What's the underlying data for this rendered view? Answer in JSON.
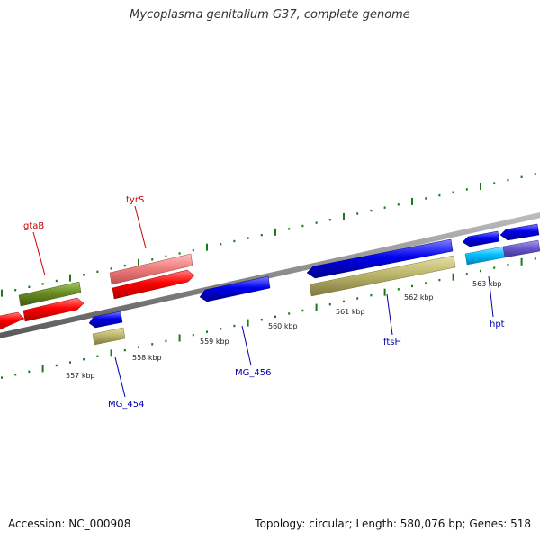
{
  "title": "Mycoplasma genitalium G37, complete genome",
  "footer": {
    "accession": "Accession: NC_000908",
    "stats": "Topology: circular; Length: 580,076 bp; Genes: 518"
  },
  "colors": {
    "backbone": "#7a7a7a",
    "ticks": "#1a7a1a",
    "gene_label_forward": "#cc0000",
    "gene_label_reverse": "#0000aa",
    "cds": "#ff0000",
    "cds_reverse": "#0000ee",
    "cds_light": "#f08080",
    "rna": "#6b8e23",
    "misc": "#bdb76b",
    "cyan": "#00bfff",
    "violet": "#6a5acd"
  },
  "ticks": [
    {
      "label": "557 kbp"
    },
    {
      "label": "558 kbp"
    },
    {
      "label": "559 kbp"
    },
    {
      "label": "560 kbp"
    },
    {
      "label": "561 kbp"
    },
    {
      "label": "562 kbp"
    },
    {
      "label": "563 kbp"
    }
  ],
  "genes": {
    "gtaB": "gtaB",
    "tyrS": "tyrS",
    "MG_454": "MG_454",
    "MG_456": "MG_456",
    "ftsH": "ftsH",
    "hpt": "hpt"
  }
}
